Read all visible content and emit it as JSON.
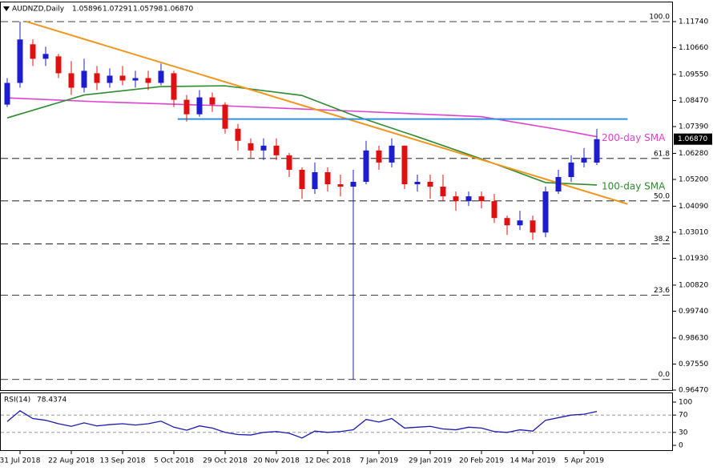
{
  "chart_data": [
    {
      "type": "candlestick",
      "title": "AUDNZD,Daily",
      "categories": [
        null,
        "31 Jul 2018",
        null,
        null,
        null,
        "22 Aug 2018",
        null,
        null,
        null,
        "13 Sep 2018",
        null,
        null,
        null,
        "5 Oct 2018",
        null,
        null,
        null,
        "29 Oct 2018",
        null,
        null,
        null,
        "20 Nov 2018",
        null,
        null,
        null,
        "12 Dec 2018",
        null,
        null,
        null,
        "7 Jan 2019",
        null,
        null,
        null,
        "29 Jan 2019",
        null,
        null,
        null,
        "20 Feb 2019",
        null,
        null,
        null,
        "14 Mar 2019",
        null,
        null,
        null,
        "5 Apr 2019",
        null
      ],
      "open": [
        1.083,
        1.092,
        1.108,
        1.102,
        1.103,
        1.096,
        1.09,
        1.096,
        1.092,
        1.095,
        1.093,
        1.094,
        1.092,
        1.096,
        1.085,
        1.079,
        1.086,
        1.083,
        1.073,
        1.067,
        1.064,
        1.066,
        1.062,
        1.056,
        1.048,
        1.055,
        1.05,
        1.049,
        1.051,
        1.064,
        1.059,
        1.066,
        1.05,
        1.051,
        1.049,
        1.045,
        1.043,
        1.045,
        1.043,
        1.036,
        1.033,
        1.035,
        1.03,
        1.047,
        1.053,
        1.059,
        1.05896
      ],
      "high": [
        1.094,
        1.1174,
        1.11,
        1.107,
        1.104,
        1.101,
        1.102,
        1.099,
        1.098,
        1.099,
        1.097,
        1.097,
        1.1,
        1.097,
        1.087,
        1.089,
        1.088,
        1.084,
        1.075,
        1.069,
        1.069,
        1.069,
        1.063,
        1.057,
        1.059,
        1.057,
        1.054,
        1.056,
        1.068,
        1.066,
        1.069,
        1.066,
        1.054,
        1.054,
        1.054,
        1.047,
        1.047,
        1.047,
        1.046,
        1.037,
        1.039,
        1.037,
        1.049,
        1.056,
        1.062,
        1.065,
        1.07291
      ],
      "low": [
        1.082,
        1.09,
        1.099,
        1.099,
        1.094,
        1.087,
        1.088,
        1.089,
        1.09,
        1.091,
        1.09,
        1.089,
        1.091,
        1.082,
        1.076,
        1.078,
        1.08,
        1.071,
        1.064,
        1.061,
        1.06,
        1.06,
        1.053,
        1.044,
        1.046,
        1.047,
        1.045,
        0.969,
        1.05,
        1.056,
        1.057,
        1.048,
        1.047,
        1.044,
        1.043,
        1.039,
        1.041,
        1.04,
        1.034,
        1.029,
        1.031,
        1.027,
        1.028,
        1.046,
        1.051,
        1.057,
        1.05798
      ],
      "close": [
        1.092,
        1.11,
        1.102,
        1.104,
        1.096,
        1.09,
        1.097,
        1.092,
        1.095,
        1.093,
        1.094,
        1.092,
        1.097,
        1.085,
        1.079,
        1.086,
        1.083,
        1.073,
        1.068,
        1.064,
        1.066,
        1.062,
        1.056,
        1.048,
        1.055,
        1.05,
        1.049,
        1.051,
        1.064,
        1.059,
        1.066,
        1.05,
        1.051,
        1.049,
        1.045,
        1.043,
        1.045,
        1.043,
        1.036,
        1.033,
        1.035,
        1.03,
        1.047,
        1.053,
        1.059,
        1.061,
        1.0687
      ],
      "last_close_label": "1.06870",
      "up_color": "#1c1cd0",
      "down_color": "#e01010",
      "ylim": [
        0.9647,
        1.1237
      ],
      "yticks": [
        {
          "value": 1.1174,
          "label": "1.11740"
        },
        {
          "value": 1.1066,
          "label": "1.10660"
        },
        {
          "value": 1.0955,
          "label": "1.09550"
        },
        {
          "value": 1.0847,
          "label": "1.08470"
        },
        {
          "value": 1.0739,
          "label": "1.07390"
        },
        {
          "value": 1.0628,
          "label": "1.06280"
        },
        {
          "value": 1.052,
          "label": "1.05200"
        },
        {
          "value": 1.0409,
          "label": "1.04090"
        },
        {
          "value": 1.0301,
          "label": "1.03010"
        },
        {
          "value": 1.0193,
          "label": "1.01930"
        },
        {
          "value": 1.0082,
          "label": "1.00820"
        },
        {
          "value": 0.9974,
          "label": "0.99740"
        },
        {
          "value": 0.9863,
          "label": "0.98630"
        },
        {
          "value": 0.9755,
          "label": "0.97550"
        },
        {
          "value": 0.9647,
          "label": "0.96470"
        }
      ],
      "overlays": [
        {
          "name": "200-day SMA",
          "color": "#e040d0",
          "x": [
            0,
            7,
            17,
            27,
            37,
            43,
            46
          ],
          "values": [
            1.0858,
            1.0842,
            1.0825,
            1.0803,
            1.078,
            1.0727,
            1.0697
          ]
        },
        {
          "name": "100-day SMA",
          "color": "#2e8b2e",
          "x": [
            0,
            6,
            12,
            17,
            23,
            27,
            32,
            37,
            42,
            46
          ],
          "values": [
            1.0775,
            1.087,
            1.0905,
            1.0908,
            1.0868,
            1.0786,
            1.0697,
            1.0605,
            1.0507,
            1.0497
          ]
        },
        {
          "color": "#f0961e",
          "x": [
            1.5,
            48.4
          ],
          "values": [
            1.1174,
            1.0418
          ]
        },
        {
          "color": "#3090e0",
          "x": [
            13.3,
            48.4
          ],
          "values": [
            1.077,
            1.077
          ]
        }
      ],
      "levels": [
        {
          "ratio": {
            "value": 100,
            "label": "100.0"
          },
          "price": 1.1174
        },
        {
          "ratio": 61.8,
          "price": 1.0607
        },
        {
          "ratio": {
            "value": 50,
            "label": "50.0"
          },
          "price": 1.0431
        },
        {
          "ratio": 38.2,
          "price": 1.0253
        },
        {
          "ratio": 23.6,
          "price": 1.004
        },
        {
          "ratio": {
            "value": 0,
            "label": "0.0"
          },
          "price": 0.9691
        }
      ]
    },
    {
      "type": "line",
      "title": "RSI(14)",
      "series": [
        {
          "color": "#1a1ab0",
          "values": [
            55,
            80,
            62,
            58,
            50,
            44,
            52,
            45,
            48,
            50,
            47,
            50,
            56,
            42,
            35,
            45,
            40,
            30,
            25,
            24,
            30,
            32,
            28,
            17,
            33,
            30,
            32,
            36,
            60,
            54,
            62,
            40,
            42,
            44,
            38,
            36,
            42,
            40,
            32,
            30,
            36,
            33,
            58,
            64,
            70,
            72,
            78.4374
          ]
        }
      ],
      "ylim": [
        0,
        100
      ],
      "yticks": [
        0,
        30,
        70,
        100
      ]
    }
  ]
}
